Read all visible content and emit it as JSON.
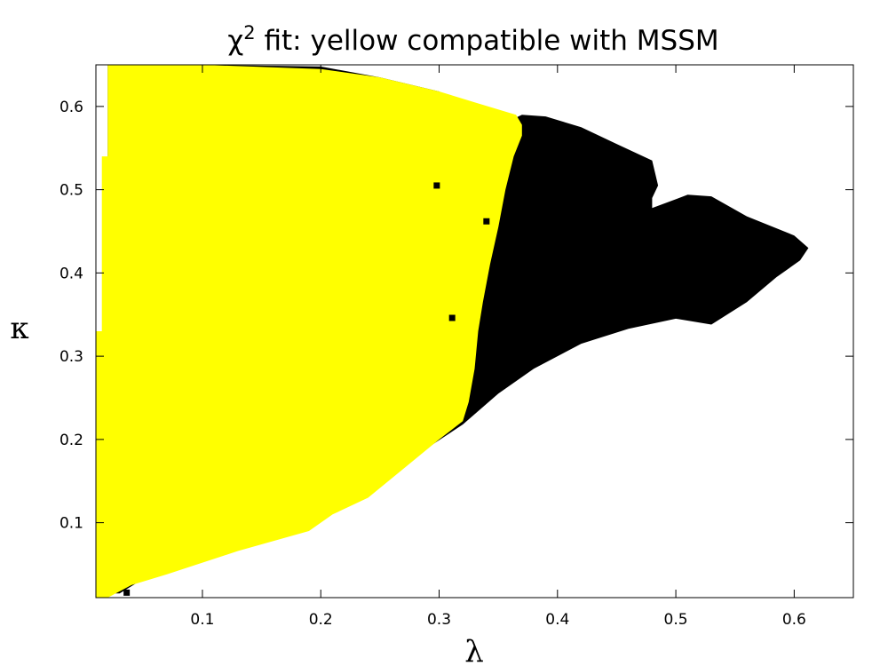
{
  "chart_data": {
    "type": "heatmap",
    "title_symbol": "χ",
    "title_superscript": "2",
    "title_rest": " fit: yellow compatible with MSSM",
    "xlabel": "λ",
    "ylabel": "κ",
    "xlim": [
      0.01,
      0.65
    ],
    "ylim": [
      0.01,
      0.65
    ],
    "x_ticks": [
      0.1,
      0.2,
      0.3,
      0.4,
      0.5,
      0.6
    ],
    "x_tick_labels": [
      "0.1",
      "0.2",
      "0.3",
      "0.4",
      "0.5",
      "0.6"
    ],
    "y_ticks": [
      0.1,
      0.2,
      0.3,
      0.4,
      0.5,
      0.6
    ],
    "y_tick_labels": [
      "0.1",
      "0.2",
      "0.3",
      "0.4",
      "0.5",
      "0.6"
    ],
    "grid": false,
    "colors": {
      "compatible": "#ffff00",
      "excluded": "#000000",
      "background": "#ffffff",
      "frame": "#000000"
    },
    "regions": [
      {
        "class": "excluded",
        "boundary": [
          [
            0.03,
            0.015
          ],
          [
            0.045,
            0.028
          ],
          [
            0.068,
            0.043
          ],
          [
            0.1,
            0.058
          ],
          [
            0.14,
            0.08
          ],
          [
            0.18,
            0.098
          ],
          [
            0.2,
            0.105
          ],
          [
            0.32,
            0.218
          ],
          [
            0.35,
            0.255
          ],
          [
            0.38,
            0.285
          ],
          [
            0.42,
            0.315
          ],
          [
            0.46,
            0.333
          ],
          [
            0.5,
            0.345
          ],
          [
            0.53,
            0.338
          ],
          [
            0.56,
            0.365
          ],
          [
            0.585,
            0.395
          ],
          [
            0.605,
            0.415
          ],
          [
            0.612,
            0.43
          ],
          [
            0.6,
            0.445
          ],
          [
            0.56,
            0.468
          ],
          [
            0.53,
            0.492
          ],
          [
            0.51,
            0.494
          ],
          [
            0.48,
            0.478
          ],
          [
            0.48,
            0.49
          ],
          [
            0.485,
            0.505
          ],
          [
            0.48,
            0.535
          ],
          [
            0.45,
            0.555
          ],
          [
            0.42,
            0.575
          ],
          [
            0.39,
            0.588
          ],
          [
            0.37,
            0.59
          ],
          [
            0.348,
            0.575
          ],
          [
            0.3,
            0.618
          ],
          [
            0.25,
            0.635
          ],
          [
            0.2,
            0.648
          ],
          [
            0.1,
            0.65
          ],
          [
            0.02,
            0.65
          ],
          [
            0.02,
            0.015
          ]
        ]
      },
      {
        "class": "compatible",
        "boundary": [
          [
            0.01,
            0.01
          ],
          [
            0.02,
            0.01
          ],
          [
            0.04,
            0.025
          ],
          [
            0.07,
            0.038
          ],
          [
            0.1,
            0.052
          ],
          [
            0.13,
            0.066
          ],
          [
            0.16,
            0.078
          ],
          [
            0.19,
            0.09
          ],
          [
            0.21,
            0.11
          ],
          [
            0.24,
            0.13
          ],
          [
            0.27,
            0.165
          ],
          [
            0.3,
            0.2
          ],
          [
            0.32,
            0.222
          ],
          [
            0.325,
            0.245
          ],
          [
            0.33,
            0.285
          ],
          [
            0.333,
            0.33
          ],
          [
            0.337,
            0.365
          ],
          [
            0.343,
            0.41
          ],
          [
            0.35,
            0.455
          ],
          [
            0.356,
            0.5
          ],
          [
            0.363,
            0.54
          ],
          [
            0.37,
            0.565
          ],
          [
            0.37,
            0.578
          ],
          [
            0.365,
            0.59
          ],
          [
            0.33,
            0.605
          ],
          [
            0.3,
            0.618
          ],
          [
            0.25,
            0.635
          ],
          [
            0.2,
            0.645
          ],
          [
            0.1,
            0.65
          ],
          [
            0.02,
            0.65
          ],
          [
            0.02,
            0.54
          ],
          [
            0.015,
            0.54
          ],
          [
            0.015,
            0.33
          ],
          [
            0.01,
            0.33
          ]
        ]
      }
    ],
    "isolated_cells": [
      {
        "x": 0.298,
        "y": 0.505,
        "class": "excluded"
      },
      {
        "x": 0.34,
        "y": 0.462,
        "class": "excluded"
      },
      {
        "x": 0.311,
        "y": 0.346,
        "class": "excluded"
      },
      {
        "x": 0.036,
        "y": 0.016,
        "class": "excluded"
      }
    ]
  }
}
